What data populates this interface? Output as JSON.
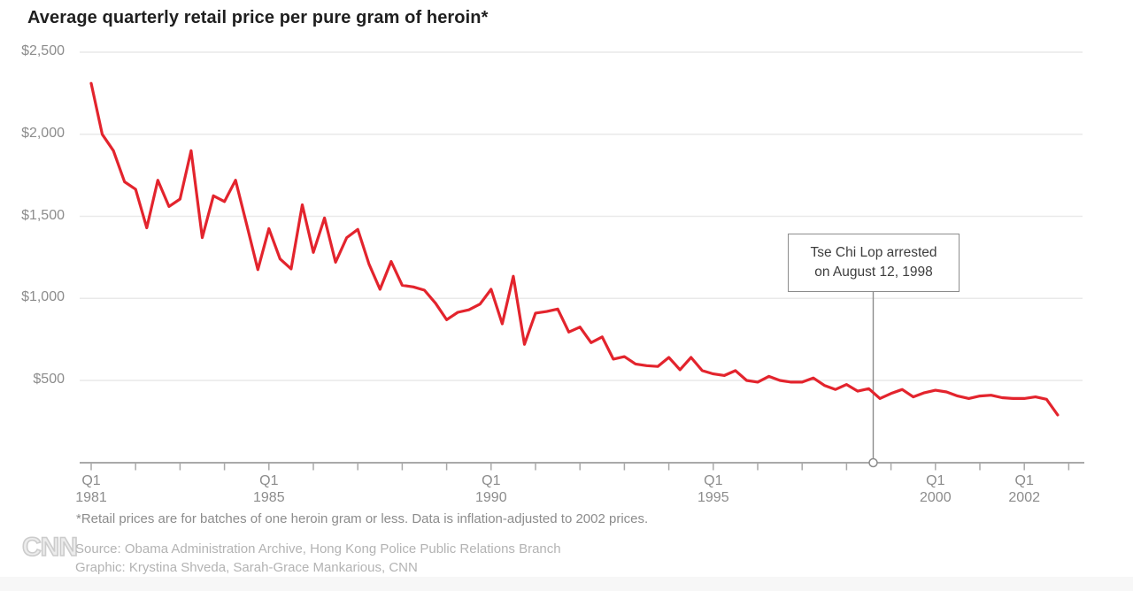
{
  "page": {
    "title": "Average quarterly retail price per pure gram of heroin*",
    "footnote": "*Retail prices are for batches of one heroin gram or less. Data is inflation-adjusted to 2002 prices.",
    "source_line": "Source: Obama Administration Archive, Hong Kong Police Public Relations Branch",
    "graphic_line": "Graphic: Krystina Shveda, Sarah-Grace Mankarious, CNN",
    "logo_text": "CNN"
  },
  "colors": {
    "line": "#e3242d",
    "grid": "#e9e9e9",
    "axis": "#a9a9a9",
    "tick_label": "#8c8c8c",
    "annotation_border": "#8c8c8c",
    "annotation_text": "#3d3d3d",
    "circle_stroke": "#8c8c8c"
  },
  "chart_data": {
    "type": "line",
    "title": "Average quarterly retail price per pure gram of heroin*",
    "xlabel": "",
    "ylabel": "",
    "frequency": "quarterly",
    "x_start": "Q1 1981",
    "x_end": "Q4 2002",
    "ylim": [
      0,
      2500
    ],
    "grid": "horizontal",
    "legend": "none",
    "y_ticks": [
      "$2,500",
      "$2,000",
      "$1,500",
      "$1,000",
      "$500"
    ],
    "y_tick_values": [
      2500,
      2000,
      1500,
      1000,
      500
    ],
    "x_ticks": [
      {
        "top": "Q1",
        "bottom": "1981",
        "year": 1981
      },
      {
        "top": "Q1",
        "bottom": "1985",
        "year": 1985
      },
      {
        "top": "Q1",
        "bottom": "1990",
        "year": 1990
      },
      {
        "top": "Q1",
        "bottom": "1995",
        "year": 1995
      },
      {
        "top": "Q1",
        "bottom": "2000",
        "year": 2000
      },
      {
        "top": "Q1",
        "bottom": "2002",
        "year": 2002
      }
    ],
    "annotation": {
      "line1": "Tse Chi Lop arrested",
      "line2": "on August 12, 1998",
      "date_position": "Q3 1998 (Aug 12, 1998)"
    },
    "quarters": [
      "Q1 1981",
      "Q2 1981",
      "Q3 1981",
      "Q4 1981",
      "Q1 1982",
      "Q2 1982",
      "Q3 1982",
      "Q4 1982",
      "Q1 1983",
      "Q2 1983",
      "Q3 1983",
      "Q4 1983",
      "Q1 1984",
      "Q2 1984",
      "Q3 1984",
      "Q4 1984",
      "Q1 1985",
      "Q2 1985",
      "Q3 1985",
      "Q4 1985",
      "Q1 1986",
      "Q2 1986",
      "Q3 1986",
      "Q4 1986",
      "Q1 1987",
      "Q2 1987",
      "Q3 1987",
      "Q4 1987",
      "Q1 1988",
      "Q2 1988",
      "Q3 1988",
      "Q4 1988",
      "Q1 1989",
      "Q2 1989",
      "Q3 1989",
      "Q4 1989",
      "Q1 1990",
      "Q2 1990",
      "Q3 1990",
      "Q4 1990",
      "Q1 1991",
      "Q2 1991",
      "Q3 1991",
      "Q4 1991",
      "Q1 1992",
      "Q2 1992",
      "Q3 1992",
      "Q4 1992",
      "Q1 1993",
      "Q2 1993",
      "Q3 1993",
      "Q4 1993",
      "Q1 1994",
      "Q2 1994",
      "Q3 1994",
      "Q4 1994",
      "Q1 1995",
      "Q2 1995",
      "Q3 1995",
      "Q4 1995",
      "Q1 1996",
      "Q2 1996",
      "Q3 1996",
      "Q4 1996",
      "Q1 1997",
      "Q2 1997",
      "Q3 1997",
      "Q4 1997",
      "Q1 1998",
      "Q2 1998",
      "Q3 1998",
      "Q4 1998",
      "Q1 1999",
      "Q2 1999",
      "Q3 1999",
      "Q4 1999",
      "Q1 2000",
      "Q2 2000",
      "Q3 2000",
      "Q4 2000",
      "Q1 2001",
      "Q2 2001",
      "Q3 2001",
      "Q4 2001",
      "Q1 2002",
      "Q2 2002",
      "Q3 2002",
      "Q4 2002"
    ],
    "values": [
      2310,
      2000,
      1900,
      1710,
      1665,
      1430,
      1720,
      1560,
      1605,
      1900,
      1370,
      1625,
      1590,
      1720,
      1450,
      1175,
      1425,
      1240,
      1180,
      1570,
      1280,
      1490,
      1220,
      1370,
      1420,
      1210,
      1055,
      1225,
      1080,
      1070,
      1050,
      970,
      870,
      915,
      930,
      965,
      1055,
      845,
      1135,
      720,
      910,
      920,
      935,
      795,
      825,
      730,
      765,
      630,
      645,
      600,
      590,
      585,
      640,
      565,
      640,
      560,
      540,
      530,
      560,
      500,
      490,
      525,
      500,
      490,
      490,
      515,
      470,
      445,
      475,
      435,
      450,
      390,
      420,
      445,
      400,
      425,
      440,
      430,
      405,
      390,
      405,
      410,
      395,
      390,
      390,
      400,
      385,
      290
    ]
  }
}
